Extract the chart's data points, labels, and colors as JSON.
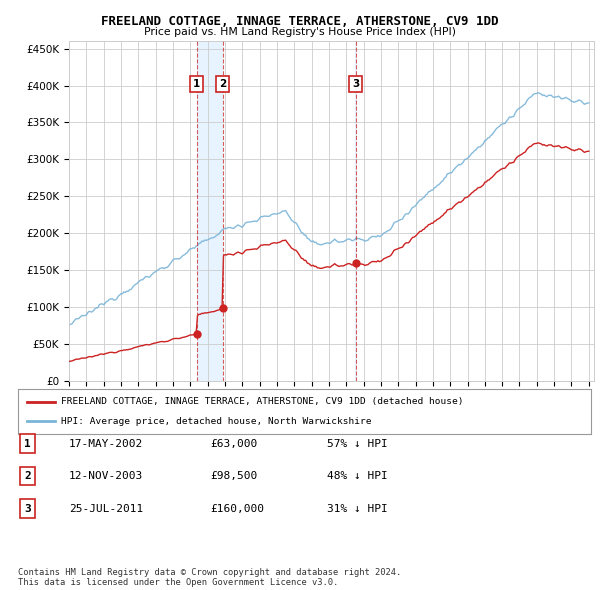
{
  "title": "FREELAND COTTAGE, INNAGE TERRACE, ATHERSTONE, CV9 1DD",
  "subtitle": "Price paid vs. HM Land Registry's House Price Index (HPI)",
  "ylim": [
    0,
    460000
  ],
  "yticks": [
    0,
    50000,
    100000,
    150000,
    200000,
    250000,
    300000,
    350000,
    400000,
    450000
  ],
  "ytick_labels": [
    "£0",
    "£50K",
    "£100K",
    "£150K",
    "£200K",
    "£250K",
    "£300K",
    "£350K",
    "£400K",
    "£450K"
  ],
  "hpi_color": "#7ab4d8",
  "price_color": "#cc2222",
  "bg_color": "#ffffff",
  "grid_color": "#cccccc",
  "shade_color": "#ddeeff",
  "sales": [
    {
      "label": "1",
      "date_num": 2002.375,
      "price": 63000
    },
    {
      "label": "2",
      "date_num": 2003.875,
      "price": 98500
    },
    {
      "label": "3",
      "date_num": 2011.56,
      "price": 160000
    }
  ],
  "legend_house_label": "FREELAND COTTAGE, INNAGE TERRACE, ATHERSTONE, CV9 1DD (detached house)",
  "legend_hpi_label": "HPI: Average price, detached house, North Warwickshire",
  "footer": "Contains HM Land Registry data © Crown copyright and database right 2024.\nThis data is licensed under the Open Government Licence v3.0.",
  "table_rows": [
    [
      "1",
      "17-MAY-2002",
      "£63,000",
      "57% ↓ HPI"
    ],
    [
      "2",
      "12-NOV-2003",
      "£98,500",
      "48% ↓ HPI"
    ],
    [
      "3",
      "25-JUL-2011",
      "£160,000",
      "31% ↓ HPI"
    ]
  ]
}
